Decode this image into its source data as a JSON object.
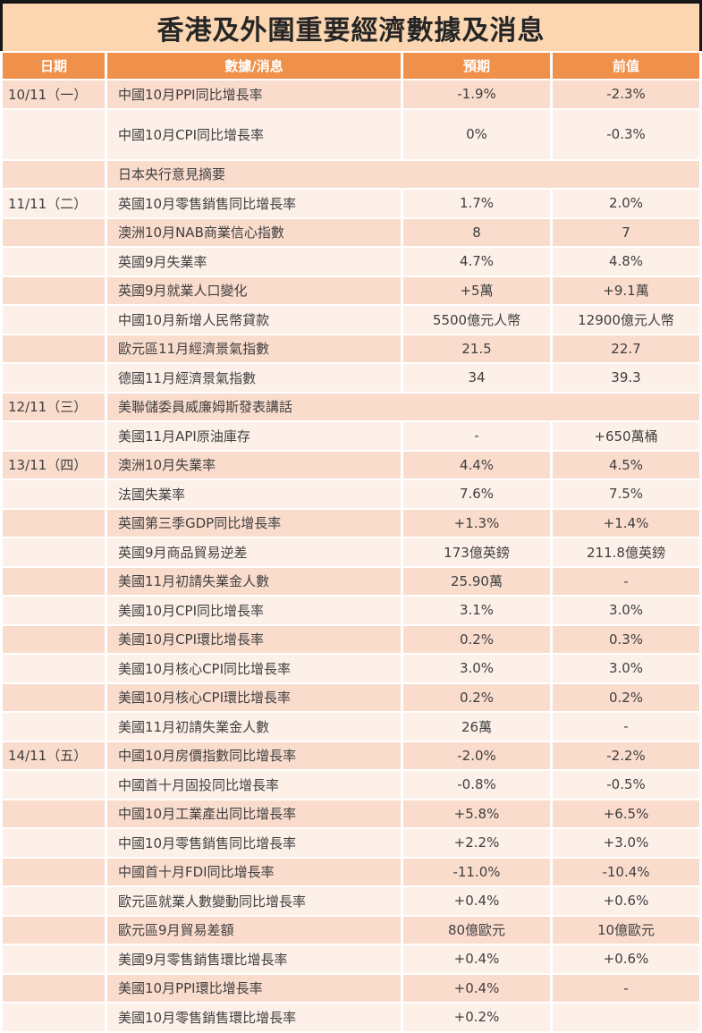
{
  "title": "香港及外圍重要經濟數據及消息",
  "colors": {
    "title_bg": "#FBD6B1",
    "header_bg": "#F0914B",
    "header_text": "#FFFFFF",
    "row_pink": "#FADCCD",
    "row_light": "#FDF0E9",
    "body_text": "#3F3F3F",
    "title_border": "#161616"
  },
  "table": {
    "columns": [
      "日期",
      "數據/消息",
      "預期",
      "前值"
    ],
    "rows": [
      {
        "date": "10/11（一）",
        "item": "中國10月PPI同比增長率",
        "expected": "-1.9%",
        "previous": "-2.3%",
        "shade": "pink"
      },
      {
        "date": "",
        "item": "中國10月CPI同比增長率",
        "expected": "0%",
        "previous": "-0.3%",
        "shade": "light",
        "tall": true
      },
      {
        "date": "",
        "item": "日本央行意見摘要",
        "expected": "",
        "previous": "",
        "shade": "pink",
        "merged": true
      },
      {
        "date": "11/11（二）",
        "item": "英國10月零售銷售同比增長率",
        "expected": "1.7%",
        "previous": "2.0%",
        "shade": "light"
      },
      {
        "date": "",
        "item": "澳洲10月NAB商業信心指數",
        "expected": "8",
        "previous": "7",
        "shade": "pink"
      },
      {
        "date": "",
        "item": "英國9月失業率",
        "expected": "4.7%",
        "previous": "4.8%",
        "shade": "light"
      },
      {
        "date": "",
        "item": "英國9月就業人口變化",
        "expected": "+5萬",
        "previous": "+9.1萬",
        "shade": "pink"
      },
      {
        "date": "",
        "item": "中國10月新增人民幣貸款",
        "expected": "5500億元人幣",
        "previous": "12900億元人幣",
        "shade": "light"
      },
      {
        "date": "",
        "item": "歐元區11月經濟景氣指數",
        "expected": "21.5",
        "previous": "22.7",
        "shade": "pink"
      },
      {
        "date": "",
        "item": "德國11月經濟景氣指數",
        "expected": "34",
        "previous": "39.3",
        "shade": "light"
      },
      {
        "date": "12/11（三）",
        "item": "美聯儲委員威廉姆斯發表講話",
        "expected": "",
        "previous": "",
        "shade": "pink",
        "merged": true
      },
      {
        "date": "",
        "item": "美國11月API原油庫存",
        "expected": "-",
        "previous": "+650萬桶",
        "shade": "light"
      },
      {
        "date": "13/11（四）",
        "item": "澳洲10月失業率",
        "expected": "4.4%",
        "previous": "4.5%",
        "shade": "pink"
      },
      {
        "date": "",
        "item": "法國失業率",
        "expected": "7.6%",
        "previous": "7.5%",
        "shade": "light"
      },
      {
        "date": "",
        "item": "英國第三季GDP同比增長率",
        "expected": "+1.3%",
        "previous": "+1.4%",
        "shade": "pink"
      },
      {
        "date": "",
        "item": "英國9月商品貿易逆差",
        "expected": "173億英鎊",
        "previous": "211.8億英鎊",
        "shade": "light"
      },
      {
        "date": "",
        "item": "美國11月初請失業金人數",
        "expected": "25.90萬",
        "previous": "-",
        "shade": "pink"
      },
      {
        "date": "",
        "item": "美國10月CPI同比增長率",
        "expected": "3.1%",
        "previous": "3.0%",
        "shade": "light"
      },
      {
        "date": "",
        "item": "美國10月CPI環比增長率",
        "expected": "0.2%",
        "previous": "0.3%",
        "shade": "pink"
      },
      {
        "date": "",
        "item": "美國10月核心CPI同比增長率",
        "expected": "3.0%",
        "previous": "3.0%",
        "shade": "light"
      },
      {
        "date": "",
        "item": "美國10月核心CPI環比增長率",
        "expected": "0.2%",
        "previous": "0.2%",
        "shade": "pink"
      },
      {
        "date": "",
        "item": "美國11月初請失業金人數",
        "expected": "26萬",
        "previous": "-",
        "shade": "light"
      },
      {
        "date": "14/11（五）",
        "item": "中國10月房價指數同比增長率",
        "expected": "-2.0%",
        "previous": "-2.2%",
        "shade": "pink"
      },
      {
        "date": "",
        "item": "中國首十月固投同比增長率",
        "expected": "-0.8%",
        "previous": "-0.5%",
        "shade": "light"
      },
      {
        "date": "",
        "item": "中國10月工業產出同比增長率",
        "expected": "+5.8%",
        "previous": "+6.5%",
        "shade": "pink"
      },
      {
        "date": "",
        "item": "中國10月零售銷售同比增長率",
        "expected": "+2.2%",
        "previous": "+3.0%",
        "shade": "light"
      },
      {
        "date": "",
        "item": "中國首十月FDI同比增長率",
        "expected": "-11.0%",
        "previous": "-10.4%",
        "shade": "pink"
      },
      {
        "date": "",
        "item": "歐元區就業人數變動同比增長率",
        "expected": "+0.4%",
        "previous": "+0.6%",
        "shade": "light"
      },
      {
        "date": "",
        "item": "歐元區9月貿易差額",
        "expected": "80億歐元",
        "previous": "10億歐元",
        "shade": "pink"
      },
      {
        "date": "",
        "item": "美國9月零售銷售環比增長率",
        "expected": "+0.4%",
        "previous": "+0.6%",
        "shade": "light"
      },
      {
        "date": "",
        "item": "美國10月PPI環比增長率",
        "expected": "+0.4%",
        "previous": "-",
        "shade": "pink"
      },
      {
        "date": "",
        "item": "美國10月零售銷售環比增長率",
        "expected": "+0.2%",
        "previous": "",
        "shade": "light"
      }
    ]
  }
}
